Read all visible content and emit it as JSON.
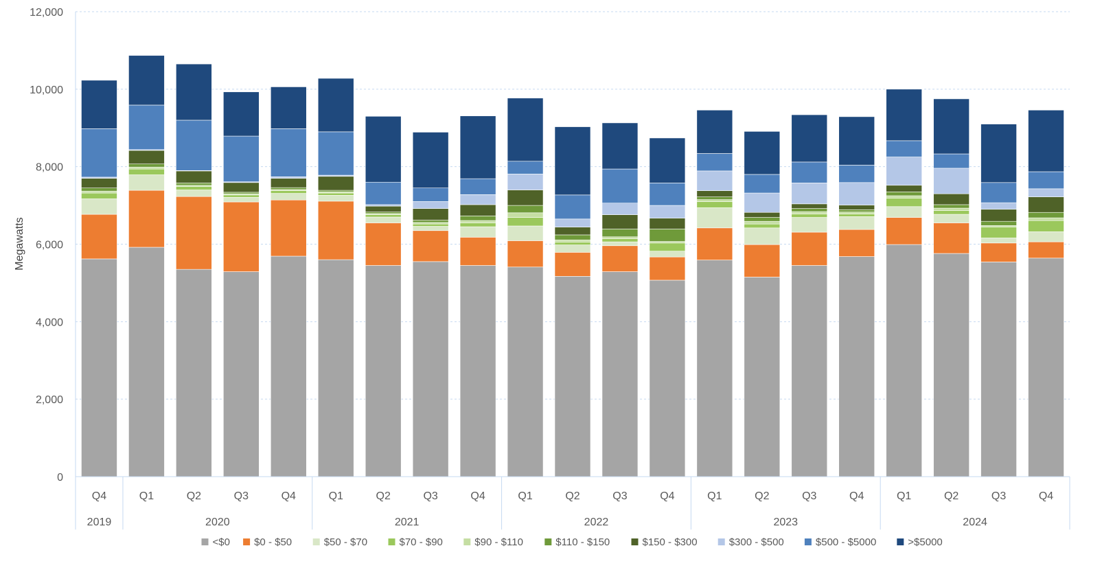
{
  "chart_data": {
    "type": "bar",
    "stacked": true,
    "ylabel": "Megawatts",
    "ylim": [
      0,
      12000
    ],
    "yticks": [
      0,
      2000,
      4000,
      6000,
      8000,
      10000,
      12000
    ],
    "ytick_labels": [
      "0",
      "2,000",
      "4,000",
      "6,000",
      "8,000",
      "10,000",
      "12,000"
    ],
    "grid": true,
    "legend_position": "bottom",
    "categories": [
      "Q4",
      "Q1",
      "Q2",
      "Q3",
      "Q4",
      "Q1",
      "Q2",
      "Q3",
      "Q4",
      "Q1",
      "Q2",
      "Q3",
      "Q4",
      "Q1",
      "Q2",
      "Q3",
      "Q4",
      "Q1",
      "Q2",
      "Q3",
      "Q4"
    ],
    "year_groups": [
      {
        "label": "2019",
        "count": 1
      },
      {
        "label": "2020",
        "count": 4
      },
      {
        "label": "2021",
        "count": 4
      },
      {
        "label": "2022",
        "count": 4
      },
      {
        "label": "2023",
        "count": 4
      },
      {
        "label": "2024",
        "count": 4
      }
    ],
    "series": [
      {
        "name": "<$0",
        "color": "#a5a5a5",
        "values": [
          5620,
          5920,
          5350,
          5290,
          5690,
          5600,
          5450,
          5550,
          5450,
          5410,
          5170,
          5290,
          5070,
          5590,
          5150,
          5450,
          5680,
          5990,
          5760,
          5540,
          5640
        ]
      },
      {
        "name": "$0 - $50",
        "color": "#ed7d31",
        "values": [
          1150,
          1470,
          1880,
          1800,
          1450,
          1510,
          1100,
          800,
          730,
          680,
          620,
          670,
          600,
          830,
          840,
          860,
          700,
          700,
          790,
          490,
          420
        ]
      },
      {
        "name": "$50 - $70",
        "color": "#d9e7c7",
        "values": [
          400,
          400,
          170,
          120,
          170,
          150,
          150,
          110,
          270,
          380,
          190,
          100,
          150,
          520,
          430,
          380,
          330,
          280,
          220,
          130,
          260
        ]
      },
      {
        "name": "$70 - $90",
        "color": "#9bc85c",
        "values": [
          150,
          150,
          90,
          60,
          70,
          60,
          60,
          60,
          100,
          220,
          70,
          80,
          210,
          160,
          100,
          90,
          70,
          220,
          100,
          280,
          290
        ]
      },
      {
        "name": "$90 - $110",
        "color": "#c5dea3",
        "values": [
          50,
          50,
          30,
          30,
          30,
          30,
          30,
          40,
          60,
          120,
          60,
          50,
          40,
          50,
          70,
          60,
          50,
          60,
          60,
          40,
          70
        ]
      },
      {
        "name": "$110 - $150",
        "color": "#6f9a3a",
        "values": [
          80,
          80,
          60,
          40,
          50,
          40,
          40,
          60,
          120,
          190,
          130,
          200,
          320,
          70,
          100,
          80,
          60,
          100,
          90,
          110,
          140
        ]
      },
      {
        "name": "$150 - $300",
        "color": "#4f6228",
        "values": [
          250,
          350,
          310,
          250,
          240,
          360,
          150,
          300,
          290,
          400,
          200,
          370,
          280,
          160,
          130,
          120,
          120,
          170,
          280,
          310,
          400
        ]
      },
      {
        "name": "$300 - $500",
        "color": "#b4c7e7",
        "values": [
          30,
          20,
          10,
          20,
          40,
          30,
          40,
          180,
          260,
          410,
          210,
          300,
          330,
          510,
          500,
          540,
          580,
          730,
          660,
          170,
          210
        ]
      },
      {
        "name": "$500 - $5000",
        "color": "#4f81bd",
        "values": [
          1250,
          1150,
          1300,
          1180,
          1240,
          1120,
          580,
          350,
          410,
          330,
          620,
          880,
          580,
          450,
          480,
          540,
          450,
          420,
          370,
          520,
          440
        ]
      },
      {
        "name": ">$5000",
        "color": "#1f497d",
        "values": [
          1250,
          1280,
          1450,
          1140,
          1080,
          1380,
          1700,
          1440,
          1620,
          1630,
          1760,
          1190,
          1160,
          1120,
          1110,
          1220,
          1250,
          1330,
          1420,
          1510,
          1590
        ]
      }
    ]
  }
}
